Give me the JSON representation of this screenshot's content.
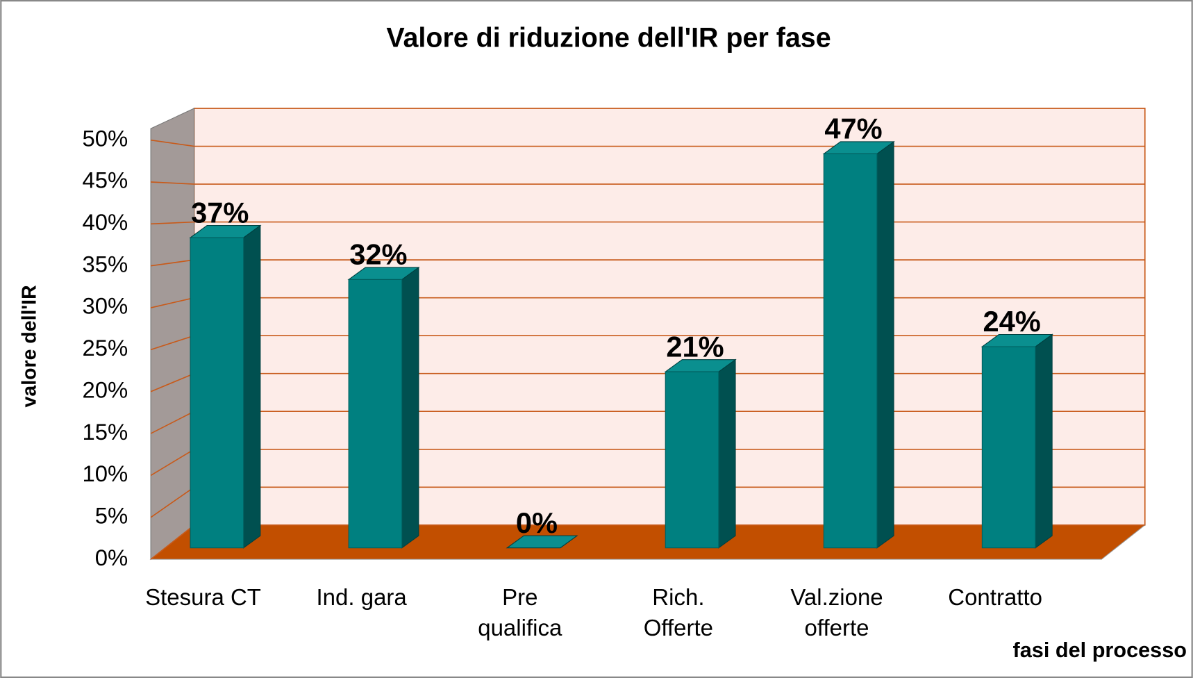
{
  "chart_data": {
    "type": "bar3d",
    "title": "Valore di riduzione dell'IR per fase",
    "y_label": "valore dell'IR",
    "x_label": "fasi del processo",
    "categories": [
      "Stesura CT",
      "Ind. gara",
      "Pre\nqualifica",
      "Rich.\nOfferte",
      "Val.zione\nofferte",
      "Contratto"
    ],
    "values": [
      37,
      32,
      0,
      21,
      47,
      24
    ],
    "value_labels": [
      "37%",
      "32%",
      "0%",
      "21%",
      "47%",
      "24%"
    ],
    "color": "#008080",
    "ylim": [
      0,
      55
    ],
    "yticks": [
      {
        "value": 0,
        "label": "0%"
      },
      {
        "value": 5,
        "label": "5%"
      },
      {
        "value": 10,
        "label": "10%"
      },
      {
        "value": 15,
        "label": "15%"
      },
      {
        "value": 20,
        "label": "20%"
      },
      {
        "value": 25,
        "label": "25%"
      },
      {
        "value": 30,
        "label": "30%"
      },
      {
        "value": 35,
        "label": "35%"
      },
      {
        "value": 40,
        "label": "40%"
      },
      {
        "value": 45,
        "label": "45%"
      },
      {
        "value": 50,
        "label": "50%"
      }
    ],
    "grid": true
  }
}
